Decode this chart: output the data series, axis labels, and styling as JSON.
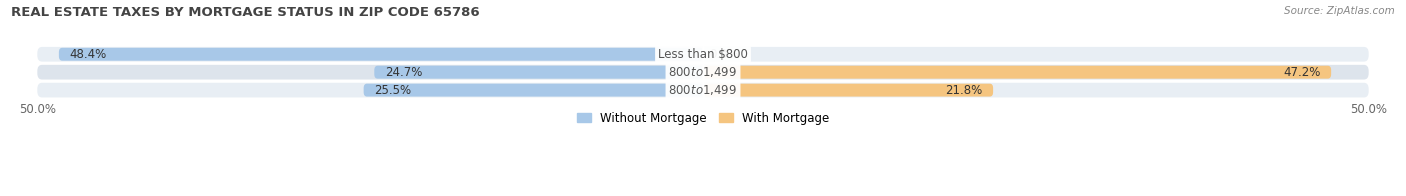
{
  "title": "REAL ESTATE TAXES BY MORTGAGE STATUS IN ZIP CODE 65786",
  "source": "Source: ZipAtlas.com",
  "rows": [
    {
      "label": "Less than $800",
      "without": 48.4,
      "with": 0.0
    },
    {
      "label": "$800 to $1,499",
      "without": 24.7,
      "with": 47.2
    },
    {
      "label": "$800 to $1,499",
      "without": 25.5,
      "with": 21.8
    }
  ],
  "color_without": "#a8c8e8",
  "color_with": "#f5c580",
  "bar_bg_light": "#e8eef4",
  "bar_bg_dark": "#dde4ec",
  "row_sep_color": "#ffffff",
  "xlim_left": -50,
  "xlim_right": 50,
  "legend_without": "Without Mortgage",
  "legend_with": "With Mortgage",
  "title_fontsize": 9.5,
  "source_fontsize": 7.5,
  "label_fontsize": 8.5,
  "value_fontsize": 8.5,
  "tick_fontsize": 8.5,
  "bar_height": 0.72
}
